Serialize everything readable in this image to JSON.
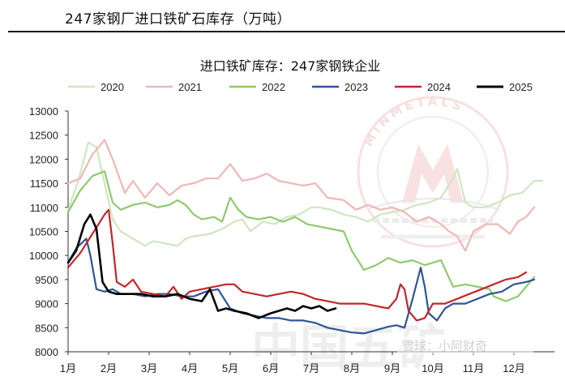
{
  "page_title": "247家钢厂进口铁矿石库存（万吨）",
  "watermark": {
    "brand": "MINMETALS",
    "bottom_text": "中国五矿",
    "source_tag": "雪球：小阿财奇"
  },
  "chart_data": {
    "type": "line",
    "title": "进口铁矿库存：247家钢铁企业",
    "xlabel": "",
    "ylabel": "",
    "x_ticks": [
      "1月",
      "2月",
      "3月",
      "4月",
      "5月",
      "6月",
      "7月",
      "8月",
      "9月",
      "10月",
      "11月",
      "12月"
    ],
    "y_ticks": [
      "13000",
      "12500",
      "12000",
      "11500",
      "11000",
      "10500",
      "10000",
      "9500",
      "9000",
      "8500",
      "8000"
    ],
    "ylim": [
      8000,
      13000
    ],
    "xlim": [
      0,
      12
    ],
    "legend_position": "top",
    "series": [
      {
        "name": "2020",
        "color": "#cfe6c0",
        "points": [
          [
            0,
            10950
          ],
          [
            0.25,
            11550
          ],
          [
            0.5,
            12350
          ],
          [
            0.7,
            12250
          ],
          [
            0.9,
            11500
          ],
          [
            1.1,
            10750
          ],
          [
            1.3,
            10500
          ],
          [
            1.6,
            10350
          ],
          [
            1.9,
            10200
          ],
          [
            2.1,
            10300
          ],
          [
            2.4,
            10250
          ],
          [
            2.7,
            10200
          ],
          [
            2.9,
            10350
          ],
          [
            3.1,
            10400
          ],
          [
            3.5,
            10450
          ],
          [
            3.8,
            10550
          ],
          [
            4.1,
            10700
          ],
          [
            4.3,
            10750
          ],
          [
            4.5,
            10500
          ],
          [
            4.8,
            10700
          ],
          [
            5.1,
            10650
          ],
          [
            5.4,
            10800
          ],
          [
            5.7,
            10850
          ],
          [
            6.0,
            11000
          ],
          [
            6.2,
            11000
          ],
          [
            6.5,
            10950
          ],
          [
            6.8,
            10850
          ],
          [
            7.1,
            10800
          ],
          [
            7.4,
            10700
          ],
          [
            7.7,
            10850
          ],
          [
            8.0,
            10900
          ],
          [
            8.3,
            10950
          ],
          [
            8.6,
            11050
          ],
          [
            8.9,
            11100
          ],
          [
            9.2,
            11200
          ],
          [
            9.5,
            11600
          ],
          [
            9.6,
            11800
          ],
          [
            9.8,
            11100
          ],
          [
            10.0,
            11000
          ],
          [
            10.3,
            11000
          ],
          [
            10.6,
            11100
          ],
          [
            10.9,
            11250
          ],
          [
            11.2,
            11300
          ],
          [
            11.5,
            11550
          ],
          [
            11.7,
            11550
          ]
        ]
      },
      {
        "name": "2021",
        "color": "#efb7b7",
        "points": [
          [
            0,
            11500
          ],
          [
            0.3,
            11600
          ],
          [
            0.6,
            12100
          ],
          [
            0.9,
            12400
          ],
          [
            1.1,
            12000
          ],
          [
            1.4,
            11300
          ],
          [
            1.6,
            11550
          ],
          [
            1.9,
            11200
          ],
          [
            2.2,
            11500
          ],
          [
            2.5,
            11250
          ],
          [
            2.8,
            11450
          ],
          [
            3.1,
            11500
          ],
          [
            3.4,
            11600
          ],
          [
            3.7,
            11600
          ],
          [
            4.0,
            11900
          ],
          [
            4.3,
            11550
          ],
          [
            4.6,
            11600
          ],
          [
            4.9,
            11700
          ],
          [
            5.2,
            11550
          ],
          [
            5.5,
            11500
          ],
          [
            5.8,
            11450
          ],
          [
            6.1,
            11500
          ],
          [
            6.4,
            11200
          ],
          [
            6.8,
            11150
          ],
          [
            7.1,
            10950
          ],
          [
            7.4,
            11050
          ],
          [
            7.7,
            10950
          ],
          [
            8.0,
            11000
          ],
          [
            8.3,
            10900
          ],
          [
            8.6,
            10700
          ],
          [
            8.9,
            10800
          ],
          [
            9.2,
            10650
          ],
          [
            9.4,
            10500
          ],
          [
            9.6,
            10400
          ],
          [
            9.8,
            10100
          ],
          [
            10.0,
            10500
          ],
          [
            10.3,
            10650
          ],
          [
            10.6,
            10650
          ],
          [
            10.9,
            10450
          ],
          [
            11.1,
            10700
          ],
          [
            11.3,
            10800
          ],
          [
            11.5,
            11000
          ]
        ]
      },
      {
        "name": "2022",
        "color": "#8fc96f",
        "points": [
          [
            0,
            10900
          ],
          [
            0.3,
            11350
          ],
          [
            0.6,
            11650
          ],
          [
            0.9,
            11750
          ],
          [
            1.1,
            11100
          ],
          [
            1.3,
            10950
          ],
          [
            1.6,
            11050
          ],
          [
            1.9,
            11100
          ],
          [
            2.2,
            11000
          ],
          [
            2.5,
            11050
          ],
          [
            2.7,
            11150
          ],
          [
            2.9,
            11050
          ],
          [
            3.1,
            10850
          ],
          [
            3.3,
            10750
          ],
          [
            3.6,
            10800
          ],
          [
            3.8,
            10700
          ],
          [
            4.0,
            11200
          ],
          [
            4.2,
            10950
          ],
          [
            4.4,
            10800
          ],
          [
            4.7,
            10750
          ],
          [
            5.0,
            10800
          ],
          [
            5.3,
            10700
          ],
          [
            5.6,
            10800
          ],
          [
            5.9,
            10650
          ],
          [
            6.2,
            10600
          ],
          [
            6.5,
            10550
          ],
          [
            6.8,
            10500
          ],
          [
            7.0,
            10100
          ],
          [
            7.3,
            9700
          ],
          [
            7.6,
            9800
          ],
          [
            7.9,
            9950
          ],
          [
            8.2,
            9850
          ],
          [
            8.5,
            9900
          ],
          [
            8.8,
            9800
          ],
          [
            9.0,
            9850
          ],
          [
            9.2,
            9900
          ],
          [
            9.5,
            9350
          ],
          [
            9.8,
            9400
          ],
          [
            10.1,
            9350
          ],
          [
            10.4,
            9300
          ],
          [
            10.5,
            9150
          ],
          [
            10.8,
            9050
          ],
          [
            11.1,
            9150
          ],
          [
            11.3,
            9350
          ],
          [
            11.5,
            9550
          ]
        ]
      },
      {
        "name": "2023",
        "color": "#2f5597",
        "points": [
          [
            0,
            9850
          ],
          [
            0.2,
            10150
          ],
          [
            0.45,
            10350
          ],
          [
            0.55,
            10000
          ],
          [
            0.7,
            9300
          ],
          [
            0.9,
            9250
          ],
          [
            1.1,
            9300
          ],
          [
            1.3,
            9200
          ],
          [
            1.6,
            9200
          ],
          [
            1.9,
            9150
          ],
          [
            2.2,
            9200
          ],
          [
            2.5,
            9200
          ],
          [
            2.8,
            9150
          ],
          [
            3.1,
            9150
          ],
          [
            3.4,
            9250
          ],
          [
            3.7,
            9300
          ],
          [
            4.0,
            8900
          ],
          [
            4.3,
            8800
          ],
          [
            4.6,
            8750
          ],
          [
            4.9,
            8700
          ],
          [
            5.2,
            8700
          ],
          [
            5.5,
            8650
          ],
          [
            5.8,
            8650
          ],
          [
            6.1,
            8600
          ],
          [
            6.4,
            8500
          ],
          [
            6.7,
            8450
          ],
          [
            7.0,
            8400
          ],
          [
            7.3,
            8380
          ],
          [
            7.6,
            8450
          ],
          [
            7.9,
            8520
          ],
          [
            8.1,
            8550
          ],
          [
            8.3,
            8500
          ],
          [
            8.5,
            9100
          ],
          [
            8.7,
            9750
          ],
          [
            8.8,
            9350
          ],
          [
            8.9,
            8800
          ],
          [
            9.1,
            8650
          ],
          [
            9.3,
            8900
          ],
          [
            9.5,
            9000
          ],
          [
            9.8,
            9000
          ],
          [
            10.1,
            9100
          ],
          [
            10.4,
            9200
          ],
          [
            10.7,
            9250
          ],
          [
            11.0,
            9400
          ],
          [
            11.3,
            9450
          ],
          [
            11.5,
            9500
          ]
        ]
      },
      {
        "name": "2024",
        "color": "#c0282a",
        "points": [
          [
            0,
            9750
          ],
          [
            0.3,
            10050
          ],
          [
            0.6,
            10450
          ],
          [
            0.9,
            10850
          ],
          [
            1.0,
            10950
          ],
          [
            1.1,
            10250
          ],
          [
            1.2,
            9450
          ],
          [
            1.4,
            9350
          ],
          [
            1.6,
            9500
          ],
          [
            1.8,
            9250
          ],
          [
            2.1,
            9200
          ],
          [
            2.4,
            9150
          ],
          [
            2.6,
            9350
          ],
          [
            2.8,
            9100
          ],
          [
            3.0,
            9250
          ],
          [
            3.3,
            9300
          ],
          [
            3.6,
            9350
          ],
          [
            3.9,
            9400
          ],
          [
            4.1,
            9400
          ],
          [
            4.3,
            9250
          ],
          [
            4.6,
            9200
          ],
          [
            4.9,
            9150
          ],
          [
            5.2,
            9200
          ],
          [
            5.5,
            9250
          ],
          [
            5.8,
            9200
          ],
          [
            6.1,
            9100
          ],
          [
            6.4,
            9050
          ],
          [
            6.7,
            9000
          ],
          [
            7.0,
            9000
          ],
          [
            7.3,
            9000
          ],
          [
            7.6,
            8950
          ],
          [
            7.9,
            8900
          ],
          [
            8.1,
            9100
          ],
          [
            8.2,
            9400
          ],
          [
            8.3,
            9300
          ],
          [
            8.4,
            8850
          ],
          [
            8.6,
            8650
          ],
          [
            8.8,
            8700
          ],
          [
            9.0,
            9000
          ],
          [
            9.3,
            9000
          ],
          [
            9.6,
            9100
          ],
          [
            9.9,
            9200
          ],
          [
            10.2,
            9300
          ],
          [
            10.5,
            9400
          ],
          [
            10.8,
            9500
          ],
          [
            11.1,
            9550
          ],
          [
            11.3,
            9650
          ]
        ]
      },
      {
        "name": "2025",
        "color": "#000000",
        "points": [
          [
            0,
            9850
          ],
          [
            0.2,
            10100
          ],
          [
            0.4,
            10650
          ],
          [
            0.55,
            10850
          ],
          [
            0.7,
            10550
          ],
          [
            0.85,
            9450
          ],
          [
            1.0,
            9250
          ],
          [
            1.2,
            9200
          ],
          [
            1.5,
            9200
          ],
          [
            1.8,
            9200
          ],
          [
            2.1,
            9150
          ],
          [
            2.4,
            9150
          ],
          [
            2.7,
            9200
          ],
          [
            3.0,
            9100
          ],
          [
            3.3,
            9050
          ],
          [
            3.5,
            9300
          ],
          [
            3.7,
            8850
          ],
          [
            3.9,
            8900
          ],
          [
            4.1,
            8850
          ],
          [
            4.4,
            8800
          ],
          [
            4.7,
            8700
          ],
          [
            5.0,
            8800
          ],
          [
            5.2,
            8850
          ],
          [
            5.4,
            8900
          ],
          [
            5.6,
            8850
          ],
          [
            5.8,
            8950
          ],
          [
            6.0,
            8900
          ],
          [
            6.2,
            8950
          ],
          [
            6.4,
            8850
          ],
          [
            6.6,
            8900
          ]
        ]
      }
    ]
  }
}
